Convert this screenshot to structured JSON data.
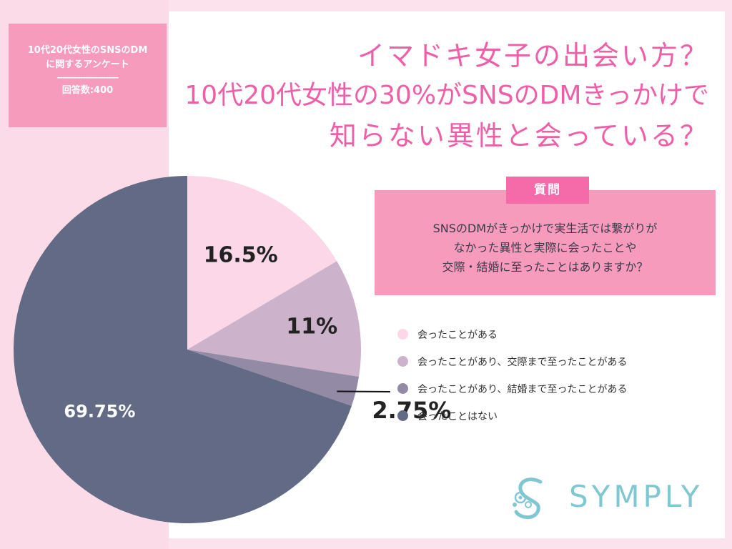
{
  "survey": {
    "title_line1": "10代20代女性のSNSのDM",
    "title_line2": "に関するアンケート",
    "divider": "------------------------",
    "respondents": "回答数:400"
  },
  "headline": {
    "line1": "イマドキ女子の出会い方？",
    "line2": "10代20代女性の30%がSNSのDMきっかけで",
    "line3": "知らない異性と会っている？"
  },
  "question": {
    "label": "質問",
    "line1": "SNSのDMがきっかけで実生活では繋がりが",
    "line2": "なかった異性と実際に会ったことや",
    "line3": "交際・結婚に至ったことはありますか？"
  },
  "brand": {
    "name": "SYMPLY"
  },
  "chart_data": {
    "type": "pie",
    "title": "",
    "categories": [
      "会ったことがある",
      "会ったことがあり、交際まで至ったことがある",
      "会ったことがあり、結婚まで至ったことがある",
      "会ったことはない"
    ],
    "values": [
      16.5,
      11,
      2.75,
      69.75
    ],
    "labels": [
      "16.5%",
      "11%",
      "2.75%",
      "69.75%"
    ],
    "colors": [
      "#fcd7e8",
      "#cdb2cb",
      "#938aa6",
      "#636a85"
    ],
    "label_colors": [
      "#222222",
      "#222222",
      "#222222",
      "#ffffff"
    ],
    "start": "12 o'clock",
    "direction": "clockwise",
    "legend_position": "right"
  }
}
